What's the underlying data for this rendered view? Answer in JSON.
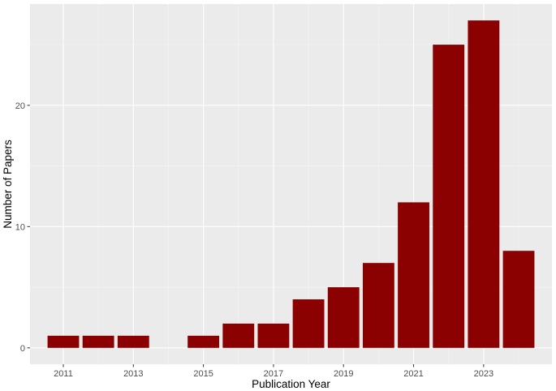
{
  "chart_data": {
    "type": "bar",
    "title": "",
    "xlabel": "Publication Year",
    "ylabel": "Number of Papers",
    "x": [
      2011,
      2012,
      2013,
      2014,
      2015,
      2016,
      2017,
      2018,
      2019,
      2020,
      2021,
      2022,
      2023,
      2024
    ],
    "values": [
      1,
      1,
      1,
      0,
      1,
      2,
      2,
      4,
      5,
      7,
      12,
      25,
      27,
      8
    ],
    "x_ticks": [
      "2011",
      "2013",
      "2015",
      "2017",
      "2019",
      "2021",
      "2023"
    ],
    "y_ticks": [
      "0",
      "10",
      "20"
    ],
    "xlim": [
      2010.05,
      2024.95
    ],
    "ylim": [
      -1.35,
      28.35
    ],
    "grid": true,
    "legend": "none",
    "colors": {
      "bar": "#8b0000",
      "panel_background": "#ebebeb",
      "grid_major": "#ffffff",
      "grid_minor": "#f5f5f5"
    }
  }
}
